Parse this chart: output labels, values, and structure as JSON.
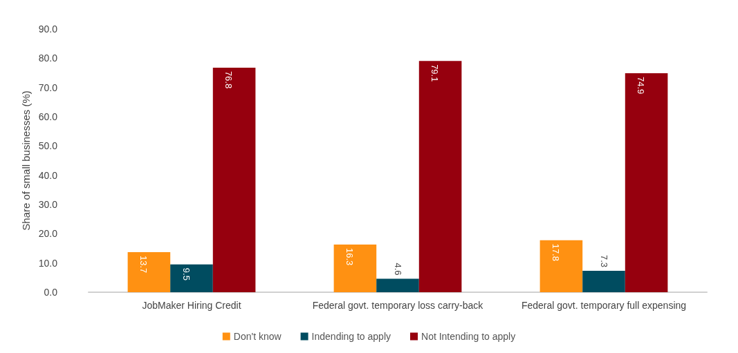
{
  "chart_data": {
    "type": "bar",
    "ylabel": "Share of small businesses (%)",
    "categories": [
      "JobMaker Hiring Credit",
      "Federal govt. temporary loss carry-back",
      "Federal govt. temporary full expensing"
    ],
    "series": [
      {
        "name": "Don't know",
        "color": "#ff9112",
        "values": [
          13.7,
          16.3,
          17.8
        ]
      },
      {
        "name": "Indending to apply",
        "color": "#004c60",
        "values": [
          9.5,
          4.6,
          7.3
        ]
      },
      {
        "name": "Not Intending to apply",
        "color": "#96000e",
        "values": [
          76.8,
          79.1,
          74.9
        ]
      }
    ],
    "ylim": [
      0,
      90
    ],
    "yticks": [
      {
        "value": 0,
        "label": "0.0"
      },
      {
        "value": 10,
        "label": "10.0"
      },
      {
        "value": 20,
        "label": "20.0"
      },
      {
        "value": 30,
        "label": "30.0"
      },
      {
        "value": 40,
        "label": "40.0"
      },
      {
        "value": 50,
        "label": "50.0"
      },
      {
        "value": 60,
        "label": "60.0"
      },
      {
        "value": 70,
        "label": "70.0"
      },
      {
        "value": 80,
        "label": "80.0"
      },
      {
        "value": 90,
        "label": "90.0"
      }
    ],
    "grid": false,
    "legend": "bottom",
    "data_labels": true
  }
}
